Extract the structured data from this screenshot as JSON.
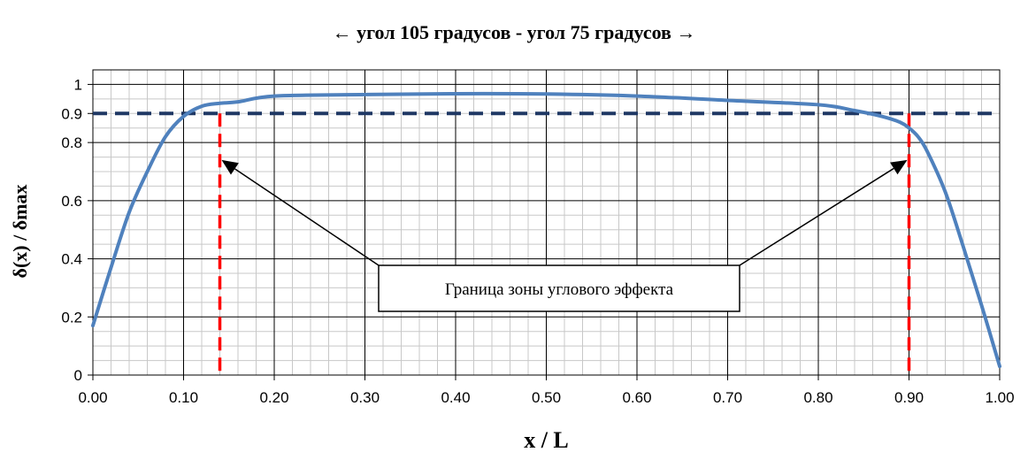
{
  "chart_data": {
    "type": "line",
    "title": "← угол 105 градусов - угол 75 градусов →",
    "xlabel": "x / L",
    "ylabel": "δ(x) / δmax",
    "xlim": [
      0,
      1
    ],
    "ylim": [
      0,
      1.05
    ],
    "grid": true,
    "x_ticks": [
      "0.00",
      "0.10",
      "0.20",
      "0.30",
      "0.40",
      "0.50",
      "0.60",
      "0.70",
      "0.80",
      "0.90",
      "1.00"
    ],
    "x_tick_values": [
      0,
      0.1,
      0.2,
      0.3,
      0.4,
      0.5,
      0.6,
      0.7,
      0.8,
      0.9,
      1.0
    ],
    "y_ticks": [
      "0",
      "0.2",
      "0.4",
      "0.6",
      "0.8",
      "0.9",
      "1"
    ],
    "y_tick_values": [
      0,
      0.2,
      0.4,
      0.6,
      0.8,
      0.9,
      1.0
    ],
    "series": [
      {
        "color": "#4f81bd",
        "x": [
          0.0,
          0.02,
          0.04,
          0.06,
          0.08,
          0.1,
          0.12,
          0.14,
          0.16,
          0.2,
          0.3,
          0.4,
          0.5,
          0.6,
          0.7,
          0.8,
          0.84,
          0.87,
          0.89,
          0.9,
          0.91,
          0.92,
          0.94,
          0.96,
          0.98,
          1.0
        ],
        "y": [
          0.17,
          0.37,
          0.56,
          0.7,
          0.82,
          0.89,
          0.925,
          0.935,
          0.94,
          0.96,
          0.965,
          0.968,
          0.967,
          0.96,
          0.945,
          0.93,
          0.91,
          0.89,
          0.87,
          0.85,
          0.82,
          0.77,
          0.63,
          0.44,
          0.24,
          0.03
        ]
      }
    ],
    "reference_lines": [
      {
        "orientation": "horizontal",
        "value": 0.9,
        "color": "#1f3864",
        "style": "dashed"
      },
      {
        "orientation": "vertical",
        "value": 0.14,
        "color": "#ff0000",
        "style": "dashed"
      },
      {
        "orientation": "vertical",
        "value": 0.9,
        "color": "#ff0000",
        "style": "dashed"
      }
    ],
    "annotation": {
      "text": "Граница зоны углового эффекта",
      "arrow_targets": [
        {
          "x": 0.14,
          "y": 0.74
        },
        {
          "x": 0.9,
          "y": 0.74
        }
      ]
    }
  }
}
